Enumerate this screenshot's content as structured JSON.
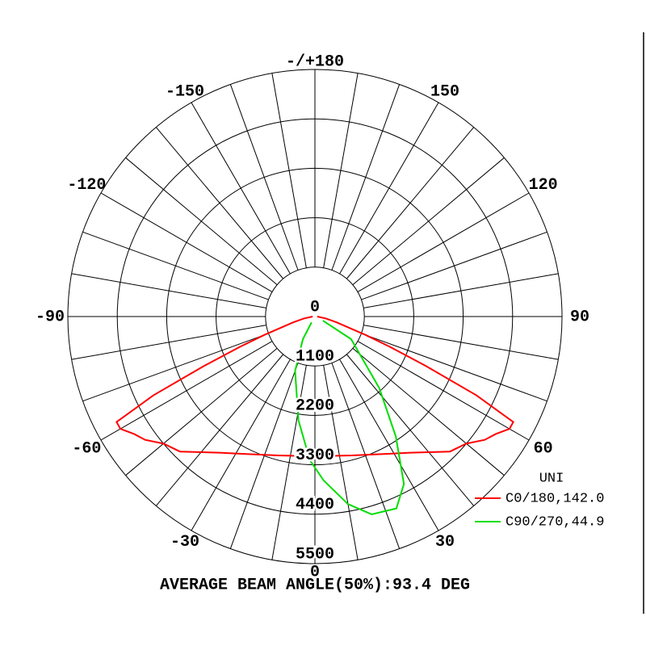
{
  "chart_data": {
    "type": "polar",
    "title": "AVERAGE BEAM ANGLE(50%):93.4 DEG",
    "rlim": [
      0,
      5500
    ],
    "rticks": [
      0,
      1100,
      2200,
      3300,
      4400,
      5500
    ],
    "angle_ticks": [
      0,
      30,
      60,
      90,
      120,
      150,
      {
        "value": 180,
        "label": "-/+180"
      },
      -150,
      -120,
      -90,
      -60,
      -30
    ],
    "angle_grid_step": 10,
    "legend_title": "UNI",
    "legend_position": "lower right",
    "series": [
      {
        "name": "C0/180,142.0",
        "color": "#ff0000",
        "x": [
          -90,
          -80,
          -75,
          -70,
          -68,
          -66,
          -64,
          -62,
          -60,
          -57,
          -54,
          -50,
          -45,
          -35,
          -28,
          -15,
          0,
          15,
          28,
          35,
          45,
          50,
          54,
          57,
          60,
          62,
          64,
          66,
          68,
          70,
          75,
          80,
          90
        ],
        "values": [
          50,
          250,
          500,
          1200,
          1800,
          2700,
          4000,
          5000,
          5000,
          4800,
          4670,
          4400,
          4250,
          3700,
          3460,
          3200,
          3110,
          3200,
          3460,
          3700,
          4250,
          4400,
          4670,
          4800,
          5000,
          5000,
          4000,
          2700,
          1800,
          1200,
          500,
          250,
          50
        ]
      },
      {
        "name": "C90/270,44.9",
        "color": "#00dd00",
        "x": [
          -30,
          -28,
          -20,
          -9,
          -2,
          3,
          10,
          16,
          23,
          28,
          34,
          42,
          58,
          63
        ],
        "values": [
          150,
          570,
          1290,
          2340,
          3200,
          3650,
          4240,
          4580,
          4640,
          4220,
          3220,
          2140,
          950,
          200
        ]
      }
    ]
  }
}
